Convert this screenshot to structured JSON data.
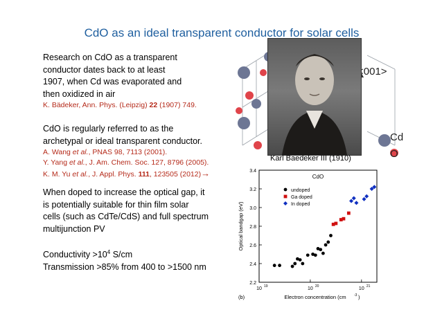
{
  "title": "CdO as an ideal transparent conductor for solar cells",
  "block1": {
    "lines": [
      "Research on CdO as a transparent",
      "conductor dates back to at least",
      "1907, when Cd was evaporated and",
      "then oxidized in air"
    ],
    "ref": {
      "authors": "K. Bädeker, Ann. Phys. (Leipzig) ",
      "vol": "22",
      "rest": " (1907) 749."
    }
  },
  "block2": {
    "lines": [
      "CdO is regularly referred to as the",
      "archetypal or ideal transparent conductor."
    ],
    "refs": [
      {
        "a": "A. Wang ",
        "etal": "et al.",
        "rest": ", PNAS 98, 7113 (2001)."
      },
      {
        "a": "Y. Yang ",
        "etal": "et al.",
        "rest": ", J. Am. Chem. Soc. 127, 8796 (2005)."
      },
      {
        "a": "K. M. Yu ",
        "etal": "et al.",
        "rest": ", J. Appl. Phys. ",
        "vol": "111",
        "rest2": ", 123505 (2012)"
      }
    ],
    "arrow": "→"
  },
  "block3": {
    "lines": [
      "When doped to increase the optical gap, it",
      "is potentially suitable for thin film solar",
      "cells (such as CdTe/CdS) and full spectrum",
      "multijunction PV"
    ]
  },
  "block4": {
    "conductivity_prefix": "Conductivity >10",
    "conductivity_exp": "4",
    "conductivity_unit": " S/cm",
    "transmission": "Transmission >85% from 400 to >1500 nm"
  },
  "figure": {
    "portrait_caption": "Karl Baedeker III (1910)",
    "miller_label": "<001>",
    "cd_label": "Cd",
    "o_label": "O"
  },
  "chart_data": {
    "type": "scatter",
    "title": "CdO",
    "xlabel": "Electron concentration (cm",
    "xlabel_exp": "-3",
    "xlabel_end": ")",
    "ylabel": "Optical bandgap (eV)",
    "panel": "(b)",
    "xscale": "log",
    "xlim_log10": [
      19,
      21.3
    ],
    "ylim": [
      2.2,
      3.4
    ],
    "xticks": [
      {
        "exp": "19",
        "v": 19
      },
      {
        "exp": "20",
        "v": 20
      },
      {
        "exp": "21",
        "v": 21
      }
    ],
    "yticks": [
      2.2,
      2.4,
      2.6,
      2.8,
      3.0,
      3.2,
      3.4
    ],
    "series": [
      {
        "name": "undoped",
        "color": "#000000",
        "marker": "circle",
        "x_log10": [
          19.3,
          19.4,
          19.65,
          19.7,
          19.75,
          19.8,
          19.85,
          19.95,
          20.05,
          20.1,
          20.15,
          20.2,
          20.25,
          20.3,
          20.35,
          20.4
        ],
        "y": [
          2.38,
          2.38,
          2.37,
          2.4,
          2.45,
          2.44,
          2.4,
          2.49,
          2.5,
          2.49,
          2.56,
          2.55,
          2.51,
          2.6,
          2.63,
          2.7
        ]
      },
      {
        "name": "Ga doped",
        "color": "#d01010",
        "marker": "square",
        "x_log10": [
          20.45,
          20.5,
          20.6,
          20.65,
          20.75
        ],
        "y": [
          2.82,
          2.83,
          2.87,
          2.88,
          2.94
        ]
      },
      {
        "name": "In doped",
        "color": "#1030c0",
        "marker": "diamond",
        "x_log10": [
          20.8,
          20.85,
          20.9,
          21.05,
          21.1,
          21.2,
          21.25
        ],
        "y": [
          3.07,
          3.1,
          3.05,
          3.09,
          3.12,
          3.2,
          3.22
        ]
      }
    ]
  }
}
